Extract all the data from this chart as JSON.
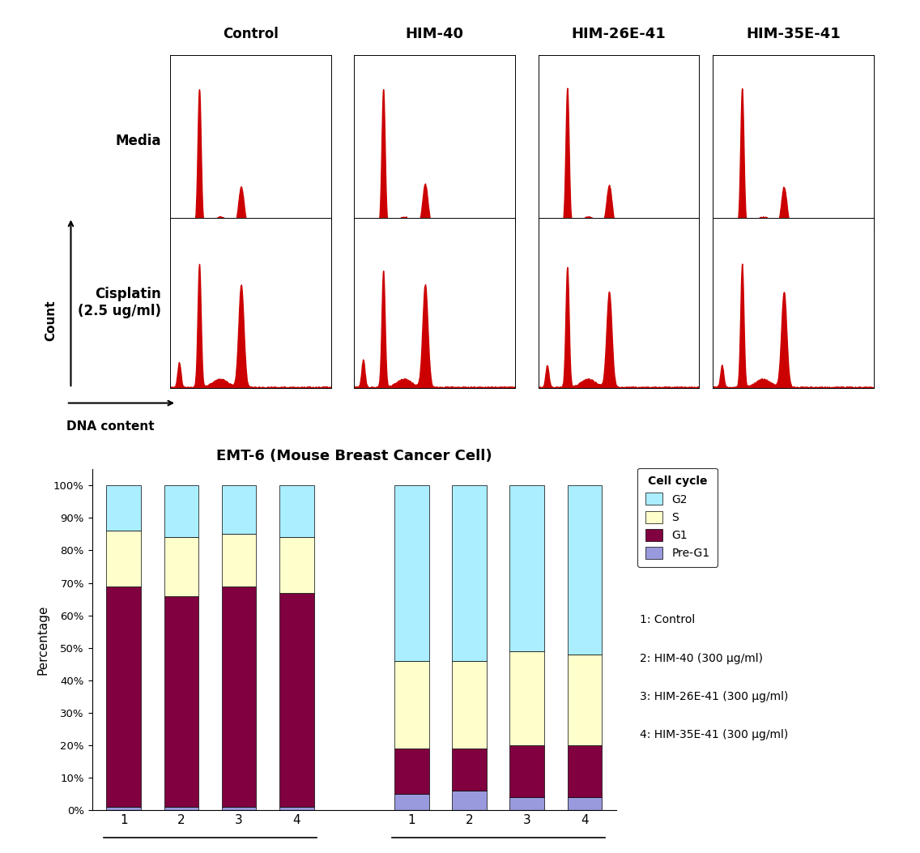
{
  "col_labels": [
    "Control",
    "HIM-40",
    "HIM-26E-41",
    "HIM-35E-41"
  ],
  "bar_chart_title": "EMT-6 (Mouse Breast Cancer Cell)",
  "legend_title": "Cell cycle",
  "legend_labels": [
    "G2",
    "S",
    "G1",
    "Pre-G1"
  ],
  "legend_colors": [
    "#aaeeff",
    "#ffffcc",
    "#800040",
    "#9999dd"
  ],
  "bar_data": {
    "Media": {
      "Pre-G1": [
        1,
        1,
        1,
        1
      ],
      "G1": [
        68,
        65,
        68,
        66
      ],
      "S": [
        17,
        18,
        16,
        17
      ],
      "G2": [
        14,
        16,
        15,
        16
      ]
    },
    "Cisplatin": {
      "Pre-G1": [
        5,
        6,
        4,
        4
      ],
      "G1": [
        14,
        13,
        16,
        16
      ],
      "S": [
        27,
        27,
        29,
        28
      ],
      "G2": [
        54,
        54,
        51,
        52
      ]
    }
  },
  "ylabel": "Percentage",
  "background_color": "#ffffff"
}
